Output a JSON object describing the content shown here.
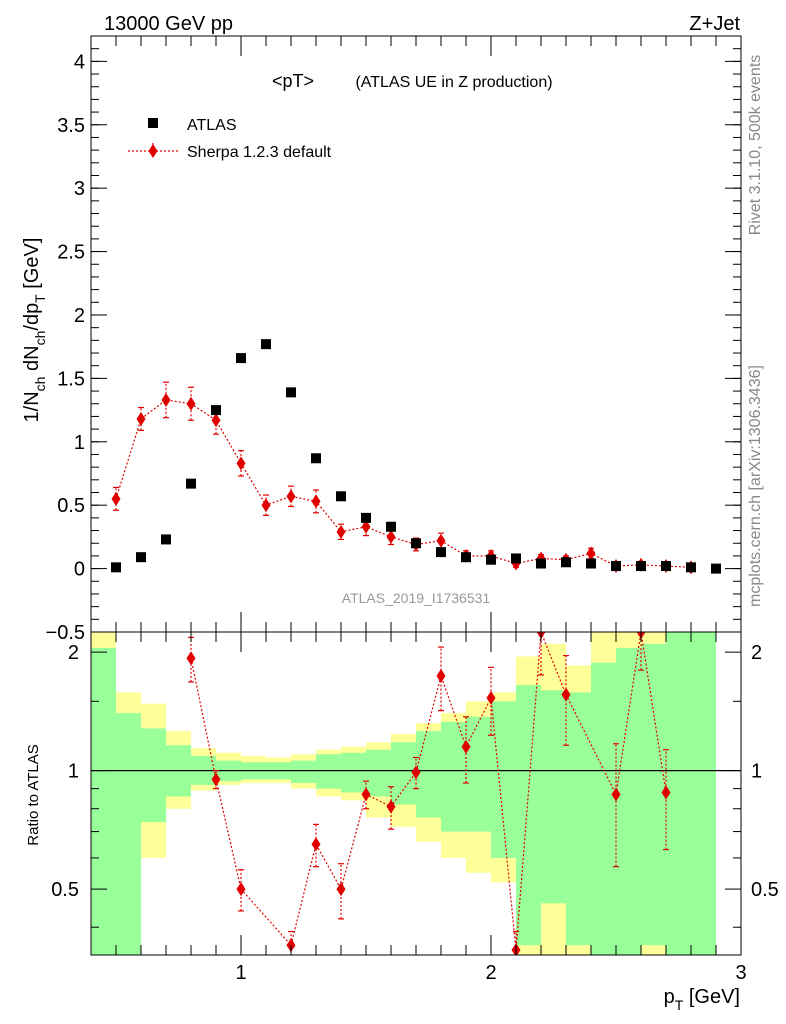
{
  "header": {
    "left": "13000 GeV pp",
    "right": "Z+Jet"
  },
  "side": {
    "rivet": "Rivet 3.1.10,  500k events",
    "mcplots": "mcplots.cern.ch [arXiv:1306.3436]"
  },
  "colors": {
    "data": "#000000",
    "mc": "#e00000",
    "band_inner": "#99ff99",
    "band_outer": "#ffff99"
  },
  "chart_data": [
    {
      "type": "scatter",
      "title": "<pT>",
      "subtitle": "(ATLAS UE in Z production)",
      "ylabel": "1/N_ch dN_ch/dp_T [GeV]",
      "ylim": [
        -0.5,
        4.2
      ],
      "xlim": [
        0.4,
        3.0
      ],
      "yticks": [
        -0.5,
        0,
        0.5,
        1,
        1.5,
        2,
        2.5,
        3,
        3.5,
        4
      ],
      "yticklabels": [
        "−0.5",
        "0",
        "0.5",
        "1",
        "1.5",
        "2",
        "2.5",
        "3",
        "3.5",
        "4"
      ],
      "watermark": "ATLAS_2019_I1736531",
      "legend_position": "top-left",
      "series": [
        {
          "name": "ATLAS",
          "marker": "square",
          "x": [
            0.5,
            0.6,
            0.7,
            0.8,
            0.9,
            1.0,
            1.1,
            1.2,
            1.3,
            1.4,
            1.5,
            1.6,
            1.7,
            1.8,
            1.9,
            2.0,
            2.1,
            2.2,
            2.3,
            2.4,
            2.5,
            2.6,
            2.7,
            2.8,
            2.9
          ],
          "y": [
            0.01,
            0.09,
            0.23,
            0.67,
            1.25,
            1.66,
            1.77,
            1.39,
            0.87,
            0.57,
            0.4,
            0.33,
            0.2,
            0.13,
            0.09,
            0.07,
            0.08,
            0.04,
            0.05,
            0.04,
            0.02,
            0.02,
            0.02,
            0.01,
            0.0
          ]
        },
        {
          "name": "Sherpa 1.2.3 default",
          "marker": "diamond",
          "x": [
            0.5,
            0.6,
            0.7,
            0.8,
            0.9,
            1.0,
            1.1,
            1.2,
            1.3,
            1.4,
            1.5,
            1.6,
            1.7,
            1.8,
            1.9,
            2.0,
            2.1,
            2.2,
            2.3,
            2.4,
            2.5,
            2.6,
            2.7,
            2.8
          ],
          "y": [
            0.55,
            1.18,
            1.33,
            1.3,
            1.17,
            0.83,
            0.5,
            0.57,
            0.53,
            0.29,
            0.33,
            0.25,
            0.19,
            0.22,
            0.1,
            0.1,
            0.04,
            0.08,
            0.07,
            0.12,
            0.02,
            0.03,
            0.02,
            0.01
          ],
          "yerr": [
            0.09,
            0.09,
            0.14,
            0.13,
            0.11,
            0.1,
            0.08,
            0.08,
            0.09,
            0.06,
            0.07,
            0.06,
            0.05,
            0.06,
            0.04,
            0.04,
            0.03,
            0.03,
            0.03,
            0.04,
            0.02,
            0.02,
            0.02,
            0.02
          ]
        }
      ]
    },
    {
      "type": "scatter",
      "ylabel": "Ratio to ATLAS",
      "xlabel": "p_T [GeV]",
      "xlim": [
        0.4,
        3.0
      ],
      "ylim": [
        0.34,
        2.25
      ],
      "xticks": [
        1,
        2,
        3
      ],
      "xticklabels": [
        "1",
        "2",
        "3"
      ],
      "yticks": [
        0.5,
        1,
        2
      ],
      "yticklabels": [
        "0.5",
        "1",
        "2"
      ],
      "reference_line": 1,
      "bands": {
        "x": [
          0.45,
          0.55,
          0.65,
          0.75,
          0.85,
          0.95,
          1.05,
          1.15,
          1.25,
          1.35,
          1.45,
          1.55,
          1.65,
          1.75,
          1.85,
          1.95,
          2.05,
          2.15,
          2.25,
          2.35,
          2.45,
          2.55,
          2.65,
          2.75,
          2.85
        ],
        "inner": [
          [
            0.3,
            2.05
          ],
          [
            0.3,
            1.4
          ],
          [
            0.74,
            1.28
          ],
          [
            0.86,
            1.16
          ],
          [
            0.92,
            1.09
          ],
          [
            0.94,
            1.06
          ],
          [
            0.95,
            1.05
          ],
          [
            0.95,
            1.05
          ],
          [
            0.93,
            1.06
          ],
          [
            0.9,
            1.1
          ],
          [
            0.88,
            1.11
          ],
          [
            0.86,
            1.13
          ],
          [
            0.82,
            1.18
          ],
          [
            0.76,
            1.26
          ],
          [
            0.7,
            1.33
          ],
          [
            0.7,
            1.37
          ],
          [
            0.6,
            1.5
          ],
          [
            0.36,
            1.65
          ],
          [
            0.46,
            1.6
          ],
          [
            0.36,
            1.58
          ],
          [
            0.3,
            1.88
          ],
          [
            0.34,
            2.05
          ],
          [
            0.36,
            2.1
          ],
          [
            0.3,
            2.3
          ],
          [
            0.3,
            2.3
          ]
        ],
        "outer": [
          [
            0.3,
            2.35
          ],
          [
            0.3,
            1.58
          ],
          [
            0.6,
            1.48
          ],
          [
            0.8,
            1.26
          ],
          [
            0.89,
            1.14
          ],
          [
            0.92,
            1.11
          ],
          [
            0.93,
            1.09
          ],
          [
            0.93,
            1.08
          ],
          [
            0.9,
            1.1
          ],
          [
            0.86,
            1.13
          ],
          [
            0.84,
            1.15
          ],
          [
            0.76,
            1.18
          ],
          [
            0.72,
            1.24
          ],
          [
            0.66,
            1.32
          ],
          [
            0.6,
            1.4
          ],
          [
            0.55,
            1.5
          ],
          [
            0.52,
            1.58
          ],
          [
            0.3,
            1.95
          ],
          [
            0.3,
            2.1
          ],
          [
            0.3,
            1.85
          ],
          [
            0.3,
            2.35
          ],
          [
            0.3,
            2.4
          ],
          [
            0.3,
            2.35
          ],
          [
            0.3,
            2.35
          ],
          [
            0.3,
            2.35
          ]
        ]
      },
      "series": [
        {
          "name": "Sherpa 1.2.3 default",
          "marker": "diamond",
          "x": [
            0.8,
            0.9,
            1.0,
            1.2,
            1.3,
            1.4,
            1.5,
            1.6,
            1.7,
            1.8,
            1.9,
            2.0,
            2.1,
            2.2,
            2.3,
            2.5,
            2.6,
            2.7
          ],
          "y": [
            1.93,
            0.95,
            0.5,
            0.36,
            0.65,
            0.5,
            0.87,
            0.81,
            0.99,
            1.74,
            1.15,
            1.53,
            0.35,
            2.25,
            1.56,
            0.87,
            2.25,
            0.88
          ],
          "yerr_low": [
            0.25,
            0.05,
            0.06,
            0.03,
            0.08,
            0.08,
            0.07,
            0.1,
            0.09,
            0.32,
            0.22,
            0.3,
            0.04,
            0.5,
            0.4,
            0.3,
            0.45,
            0.25
          ],
          "yerr_high": [
            0.25,
            0.05,
            0.06,
            0.03,
            0.08,
            0.08,
            0.07,
            0.1,
            0.09,
            0.32,
            0.22,
            0.3,
            0.04,
            0.5,
            0.4,
            0.3,
            0.45,
            0.25
          ]
        }
      ]
    }
  ]
}
